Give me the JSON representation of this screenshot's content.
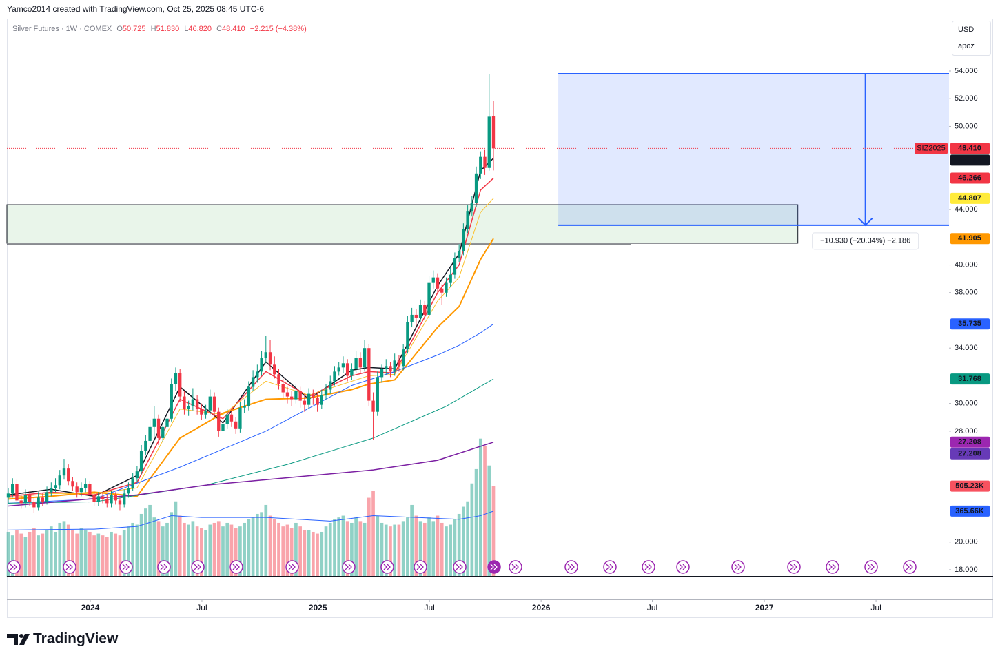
{
  "header": "Yamco2014 created with TradingView.com, Oct 25, 2025 08:45 UTC-6",
  "brand": "TradingView",
  "chart_data": {
    "type": "candlestick",
    "legend": {
      "symbol": "Silver Futures · 1W · COMEX",
      "readout": [
        "O",
        "50.725",
        "H",
        "51.830",
        "L",
        "46.820",
        "C",
        "48.410",
        "−2.215 (−4.38%)"
      ]
    },
    "currency": "USD",
    "account": "apoz",
    "contract": "SIZ2025",
    "up_color": "#089981",
    "down_color": "#f23645",
    "ohlc": [
      [
        23.2,
        23.9,
        22.8,
        23.5
      ],
      [
        23.5,
        24.6,
        23.2,
        24.2
      ],
      [
        24.2,
        24.5,
        22.7,
        23.0
      ],
      [
        23.0,
        23.4,
        22.4,
        22.8
      ],
      [
        22.8,
        23.8,
        22.5,
        23.4
      ],
      [
        23.4,
        23.7,
        22.6,
        22.9
      ],
      [
        22.9,
        23.2,
        22.1,
        22.5
      ],
      [
        22.5,
        23.6,
        22.3,
        23.2
      ],
      [
        23.2,
        23.5,
        22.6,
        22.9
      ],
      [
        22.9,
        24.0,
        22.7,
        23.6
      ],
      [
        23.6,
        24.3,
        23.3,
        23.9
      ],
      [
        23.9,
        24.6,
        23.6,
        24.1
      ],
      [
        24.1,
        25.2,
        23.8,
        24.8
      ],
      [
        24.8,
        26.0,
        24.5,
        25.3
      ],
      [
        25.3,
        25.6,
        24.1,
        24.4
      ],
      [
        24.4,
        24.7,
        23.7,
        24.0
      ],
      [
        24.0,
        24.3,
        23.2,
        23.6
      ],
      [
        23.6,
        24.3,
        23.3,
        23.9
      ],
      [
        23.9,
        24.6,
        23.6,
        24.2
      ],
      [
        24.2,
        24.4,
        23.1,
        23.4
      ],
      [
        23.4,
        23.7,
        22.6,
        22.9
      ],
      [
        22.9,
        23.6,
        22.6,
        23.3
      ],
      [
        23.3,
        23.6,
        22.8,
        23.1
      ],
      [
        23.1,
        23.4,
        22.5,
        22.8
      ],
      [
        22.8,
        23.7,
        22.5,
        23.4
      ],
      [
        23.4,
        23.6,
        22.7,
        23.0
      ],
      [
        23.0,
        23.2,
        22.3,
        22.7
      ],
      [
        22.7,
        23.8,
        22.5,
        23.5
      ],
      [
        23.5,
        24.3,
        23.2,
        23.9
      ],
      [
        23.9,
        25.0,
        23.7,
        24.6
      ],
      [
        24.6,
        25.5,
        24.3,
        25.1
      ],
      [
        25.1,
        27.0,
        24.9,
        26.6
      ],
      [
        26.6,
        27.7,
        26.3,
        27.3
      ],
      [
        27.3,
        28.8,
        27.0,
        28.3
      ],
      [
        28.3,
        29.8,
        27.6,
        28.9
      ],
      [
        28.9,
        29.2,
        27.0,
        27.5
      ],
      [
        27.5,
        28.7,
        27.2,
        28.3
      ],
      [
        28.3,
        29.3,
        28.0,
        28.9
      ],
      [
        28.9,
        31.8,
        28.7,
        31.4
      ],
      [
        31.4,
        32.6,
        30.9,
        32.2
      ],
      [
        32.2,
        32.5,
        30.1,
        30.5
      ],
      [
        30.5,
        30.9,
        29.2,
        29.6
      ],
      [
        29.6,
        30.2,
        29.1,
        29.8
      ],
      [
        29.8,
        31.1,
        29.5,
        30.3
      ],
      [
        30.3,
        30.6,
        29.2,
        29.6
      ],
      [
        29.6,
        30.0,
        28.8,
        29.2
      ],
      [
        29.2,
        29.9,
        28.9,
        29.5
      ],
      [
        29.5,
        31.0,
        29.2,
        30.5
      ],
      [
        30.5,
        30.8,
        29.0,
        29.4
      ],
      [
        29.4,
        29.7,
        27.6,
        28.0
      ],
      [
        28.0,
        28.9,
        27.2,
        28.5
      ],
      [
        28.5,
        29.6,
        28.2,
        29.2
      ],
      [
        29.2,
        29.5,
        28.3,
        28.7
      ],
      [
        28.7,
        29.0,
        27.8,
        28.2
      ],
      [
        28.2,
        30.1,
        27.9,
        29.7
      ],
      [
        29.7,
        30.3,
        29.3,
        29.8
      ],
      [
        29.8,
        31.6,
        29.5,
        31.2
      ],
      [
        31.2,
        32.4,
        30.9,
        31.9
      ],
      [
        31.9,
        32.8,
        31.5,
        32.3
      ],
      [
        32.3,
        33.8,
        32.0,
        33.3
      ],
      [
        33.3,
        34.9,
        32.9,
        33.7
      ],
      [
        33.7,
        34.6,
        32.4,
        32.8
      ],
      [
        32.8,
        33.4,
        31.8,
        32.1
      ],
      [
        32.1,
        32.5,
        31.0,
        31.4
      ],
      [
        31.4,
        31.8,
        30.4,
        30.8
      ],
      [
        30.8,
        31.2,
        30.0,
        30.5
      ],
      [
        30.5,
        30.9,
        29.8,
        30.3
      ],
      [
        30.3,
        31.4,
        30.0,
        30.9
      ],
      [
        30.9,
        31.2,
        29.7,
        30.2
      ],
      [
        30.2,
        30.6,
        29.4,
        29.9
      ],
      [
        29.9,
        31.1,
        29.6,
        30.7
      ],
      [
        30.7,
        31.0,
        29.9,
        30.4
      ],
      [
        30.4,
        30.8,
        29.4,
        29.9
      ],
      [
        29.9,
        31.0,
        29.6,
        30.6
      ],
      [
        30.6,
        31.4,
        30.3,
        31.0
      ],
      [
        31.0,
        32.0,
        30.7,
        31.6
      ],
      [
        31.6,
        32.7,
        31.3,
        32.3
      ],
      [
        32.3,
        33.0,
        32.0,
        32.6
      ],
      [
        32.6,
        33.4,
        32.2,
        32.9
      ],
      [
        32.9,
        33.2,
        31.6,
        32.0
      ],
      [
        32.0,
        32.9,
        31.7,
        32.5
      ],
      [
        32.5,
        33.8,
        32.2,
        33.3
      ],
      [
        33.3,
        33.7,
        32.2,
        32.6
      ],
      [
        32.6,
        34.6,
        32.3,
        34.0
      ],
      [
        34.0,
        34.3,
        29.8,
        30.2
      ],
      [
        30.2,
        30.8,
        27.4,
        29.4
      ],
      [
        29.4,
        32.3,
        29.1,
        31.9
      ],
      [
        31.9,
        32.8,
        31.5,
        32.5
      ],
      [
        32.5,
        33.2,
        32.1,
        32.7
      ],
      [
        32.7,
        33.0,
        31.9,
        32.3
      ],
      [
        32.3,
        33.6,
        32.0,
        33.1
      ],
      [
        33.1,
        33.5,
        32.3,
        32.7
      ],
      [
        32.7,
        34.3,
        32.4,
        33.9
      ],
      [
        33.9,
        36.3,
        33.6,
        35.9
      ],
      [
        35.9,
        36.9,
        35.5,
        36.4
      ],
      [
        36.4,
        36.8,
        35.6,
        36.2
      ],
      [
        36.2,
        37.5,
        35.9,
        37.1
      ],
      [
        37.1,
        37.4,
        36.0,
        36.4
      ],
      [
        36.4,
        39.2,
        36.1,
        38.7
      ],
      [
        38.7,
        39.6,
        38.3,
        39.1
      ],
      [
        39.1,
        39.4,
        37.9,
        38.3
      ],
      [
        38.3,
        38.6,
        37.1,
        38.0
      ],
      [
        38.0,
        39.1,
        37.7,
        38.7
      ],
      [
        38.7,
        39.8,
        38.4,
        39.3
      ],
      [
        39.3,
        40.9,
        39.0,
        40.5
      ],
      [
        40.5,
        41.5,
        40.2,
        41.0
      ],
      [
        41.0,
        43.0,
        40.7,
        42.6
      ],
      [
        42.6,
        44.3,
        42.3,
        43.9
      ],
      [
        43.9,
        45.0,
        43.5,
        44.5
      ],
      [
        44.5,
        47.1,
        44.2,
        46.6
      ],
      [
        46.6,
        48.2,
        46.2,
        47.8
      ],
      [
        47.8,
        48.3,
        46.5,
        47.0
      ],
      [
        47.0,
        53.8,
        46.8,
        50.7
      ],
      [
        50.725,
        51.83,
        46.82,
        48.41
      ]
    ],
    "volume": {
      "values": [
        250,
        230,
        260,
        240,
        220,
        250,
        270,
        230,
        240,
        260,
        280,
        250,
        300,
        310,
        290,
        260,
        240,
        270,
        260,
        250,
        230,
        240,
        230,
        220,
        250,
        240,
        230,
        260,
        280,
        300,
        290,
        350,
        380,
        400,
        330,
        310,
        280,
        300,
        360,
        420,
        340,
        300,
        290,
        310,
        280,
        270,
        260,
        290,
        300,
        310,
        280,
        300,
        290,
        270,
        280,
        300,
        320,
        330,
        350,
        360,
        400,
        340,
        320,
        300,
        280,
        290,
        270,
        300,
        280,
        260,
        260,
        250,
        240,
        250,
        280,
        300,
        320,
        330,
        340,
        310,
        300,
        330,
        310,
        300,
        440,
        480,
        340,
        300,
        290,
        280,
        290,
        290,
        310,
        330,
        400,
        340,
        310,
        300,
        330,
        310,
        340,
        300,
        280,
        290,
        320,
        350,
        390,
        420,
        520,
        600,
        770,
        730,
        620,
        505.23
      ],
      "ma": {
        "color": "#2962ff",
        "x": [
          0,
          20,
          30,
          38,
          45,
          60,
          75,
          85,
          95,
          105,
          110,
          113
        ],
        "values": [
          260,
          265,
          280,
          340,
          330,
          330,
          310,
          340,
          330,
          320,
          340,
          365.66
        ]
      }
    },
    "volume_lim": [
      0,
      3110
    ],
    "moving_averages": [
      {
        "color": "#131722",
        "width": 1.5,
        "x": [
          0,
          10,
          20,
          30,
          40,
          50,
          60,
          70,
          80,
          84,
          90,
          100,
          105,
          110,
          113
        ],
        "values": [
          23.4,
          23.8,
          23.3,
          24.8,
          31.2,
          28.6,
          33.0,
          30.3,
          32.4,
          32.6,
          32.5,
          38.5,
          40.8,
          46.8,
          47.704
        ]
      },
      {
        "color": "#f23645",
        "width": 1.5,
        "x": [
          0,
          10,
          20,
          30,
          40,
          50,
          60,
          70,
          80,
          84,
          90,
          100,
          105,
          110,
          113
        ],
        "values": [
          23.3,
          23.6,
          23.4,
          24.3,
          30.3,
          28.9,
          32.3,
          30.5,
          32.0,
          32.3,
          32.2,
          38.0,
          40.0,
          45.4,
          46.266
        ]
      },
      {
        "color": "#fbc02d",
        "width": 1,
        "x": [
          0,
          10,
          20,
          30,
          40,
          50,
          60,
          70,
          80,
          84,
          90,
          100,
          105,
          110,
          113
        ],
        "values": [
          23.2,
          23.5,
          23.5,
          23.9,
          29.6,
          29.2,
          31.6,
          30.6,
          31.6,
          32.0,
          32.1,
          37.4,
          39.1,
          43.8,
          44.807
        ]
      },
      {
        "color": "#ff9800",
        "width": 2,
        "x": [
          0,
          10,
          20,
          30,
          40,
          50,
          60,
          70,
          80,
          84,
          90,
          100,
          105,
          110,
          113
        ],
        "values": [
          23.1,
          23.3,
          23.6,
          23.3,
          27.5,
          29.3,
          30.3,
          30.4,
          31.0,
          31.4,
          31.7,
          35.5,
          37.0,
          40.4,
          41.905
        ]
      },
      {
        "color": "#2962ff",
        "width": 1,
        "x": [
          0,
          20,
          40,
          60,
          80,
          90,
          100,
          105,
          110,
          113
        ],
        "values": [
          22.8,
          23.1,
          25.4,
          28.0,
          31.3,
          32.3,
          33.5,
          34.2,
          35.1,
          35.735
        ]
      },
      {
        "color": "#089981",
        "width": 1,
        "x": [
          0,
          20,
          46,
          65,
          85,
          102,
          113
        ],
        "values": [
          22.8,
          22.9,
          24.1,
          25.6,
          27.5,
          29.8,
          31.768
        ]
      },
      {
        "color": "#7b1fa2",
        "width": 1.5,
        "x": [
          0,
          30,
          46,
          85,
          100,
          113
        ],
        "values": [
          22.6,
          23.4,
          24.1,
          25.2,
          25.9,
          27.208
        ]
      }
    ],
    "badges": [
      {
        "value": 48.41,
        "label": "48.410",
        "color": "#f23645",
        "text_color": "#ffffff"
      },
      {
        "value": 47.704,
        "label": "47.704",
        "color": "#131722",
        "text_color": "#ffffff"
      },
      {
        "value": 46.266,
        "label": "46.266",
        "color": "#f23645",
        "text_color": "#ffffff"
      },
      {
        "value": 44.807,
        "label": "44.807",
        "color": "#ffeb3b",
        "text_color": "#131722"
      },
      {
        "value": 41.905,
        "label": "41.905",
        "color": "#ff9800",
        "text_color": "#131722"
      },
      {
        "value": 35.735,
        "label": "35.735",
        "color": "#2962ff",
        "text_color": "#ffffff"
      },
      {
        "value": 31.768,
        "label": "31.768",
        "color": "#089981",
        "text_color": "#ffffff"
      },
      {
        "value": 27.208,
        "label": "27.208",
        "color": "#9c27b0",
        "text_color": "#ffffff"
      },
      {
        "value": 27.208,
        "label": "27.208",
        "color": "#673ab7",
        "text_color": "#ffffff"
      }
    ],
    "volume_badges": [
      {
        "value": 505.23,
        "label": "505.23K",
        "color": "#f7525f",
        "text_color": "#ffffff"
      },
      {
        "value": 365.66,
        "label": "365.66K",
        "color": "#2962ff",
        "text_color": "#ffffff"
      }
    ],
    "measure": {
      "top": 53.8,
      "bottom": 42.87,
      "x_from": 128.1,
      "x_to": 219.1,
      "label": "−10.930 (−20.34%) −2,186",
      "color": "#2962ff"
    },
    "zone": {
      "top": 44.35,
      "bottom": 41.57,
      "x_from": -0.32,
      "x_to": 183.9
    },
    "hline": {
      "value": 41.47,
      "x_to": 145.1
    },
    "xlim": [
      -0.32,
      219.1
    ],
    "ylim": [
      17.5,
      57.73
    ],
    "xticks": [
      {
        "value": 19.1,
        "label": "2024"
      },
      {
        "value": 45.1,
        "label": "Jul"
      },
      {
        "value": 72.1,
        "label": "2025"
      },
      {
        "value": 98.1,
        "label": "Jul"
      },
      {
        "value": 124.1,
        "label": "2026"
      },
      {
        "value": 150,
        "label": "Jul"
      },
      {
        "value": 176.1,
        "label": "2027"
      },
      {
        "value": 202.1,
        "label": "Jul"
      }
    ],
    "yticks": [
      {
        "value": 18,
        "label": "18.000"
      },
      {
        "value": 20,
        "label": "20.000"
      },
      {
        "value": 28,
        "label": "28.000"
      },
      {
        "value": 30,
        "label": "30.000"
      },
      {
        "value": 34,
        "label": "34.000"
      },
      {
        "value": 38,
        "label": "38.000"
      },
      {
        "value": 40,
        "label": "40.000"
      },
      {
        "value": 44,
        "label": "44.000"
      },
      {
        "value": 50,
        "label": "50.000"
      },
      {
        "value": 52,
        "label": "52.000"
      },
      {
        "value": 54,
        "label": "54.000"
      }
    ]
  }
}
